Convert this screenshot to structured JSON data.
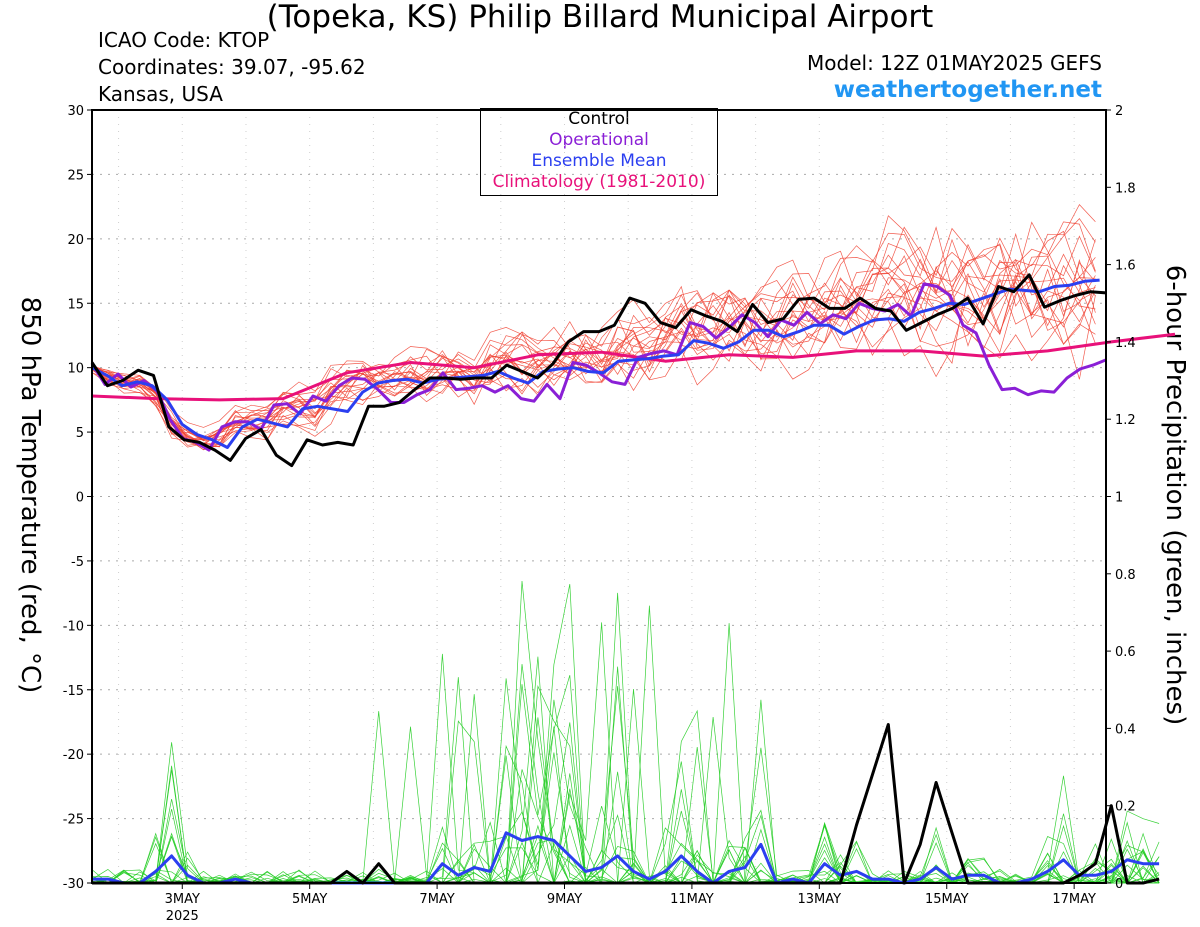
{
  "header": {
    "title": "(Topeka, KS) Philip Billard Municipal Airport",
    "icao": "ICAO Code: KTOP",
    "coords": "Coordinates: 39.07, -95.62",
    "region": "Kansas, USA",
    "model": "Model: 12Z 01MAY2025 GEFS",
    "site": "weathertogether.net",
    "site_color": "#2196f3"
  },
  "legend": {
    "control": "Control",
    "operational": "Operational",
    "mean": "Ensemble Mean",
    "climo": "Climatology (1981-2010)"
  },
  "colors": {
    "control": "#000000",
    "operational": "#8a1fd6",
    "mean": "#2b3ff0",
    "climo": "#e8117a",
    "temp_members": "#f04030",
    "precip_members": "#22cc22"
  },
  "chart_data": {
    "type": "line",
    "xlabel": "",
    "ylabel": "850 hPa Temperature (red, °C)",
    "y2label": "6-hour Precipitation (green, inches)",
    "xlim_days": [
      1.583,
      17.5
    ],
    "ylim": [
      -30,
      30
    ],
    "y2lim": [
      0,
      2
    ],
    "grid": true,
    "x_ticks": [
      {
        "day": 3,
        "label": "3MAY"
      },
      {
        "day": 5,
        "label": "5MAY"
      },
      {
        "day": 7,
        "label": "7MAY"
      },
      {
        "day": 9,
        "label": "9MAY"
      },
      {
        "day": 11,
        "label": "11MAY"
      },
      {
        "day": 13,
        "label": "13MAY"
      },
      {
        "day": 15,
        "label": "15MAY"
      },
      {
        "day": 17,
        "label": "17MAY"
      }
    ],
    "x_sublabel": "2025",
    "y_ticks": [
      30,
      25,
      20,
      15,
      10,
      5,
      0,
      -5,
      -10,
      -15,
      -20,
      -25,
      -30
    ],
    "y2_ticks": [
      2,
      1.8,
      1.6,
      1.4,
      1.2,
      1,
      0.8,
      0.6,
      0.4,
      0.2,
      0
    ],
    "temperature": {
      "control": [
        10.4,
        8.6,
        9.0,
        9.8,
        9.4,
        5.4,
        4.4,
        4.2,
        3.6,
        2.8,
        4.5,
        5.2,
        3.2,
        2.4,
        4.4,
        4.0,
        4.2,
        4.0,
        7.0,
        7.0,
        7.3,
        8.3,
        9.2,
        9.2,
        9.1,
        9.2,
        9.2,
        10.2,
        9.7,
        9.2,
        10.3,
        12.0,
        12.8,
        12.8,
        13.3,
        15.4,
        15.0,
        13.5,
        13.1,
        14.5,
        14.0,
        13.6,
        12.8,
        14.9,
        13.5,
        13.8,
        15.3,
        15.4,
        14.6,
        14.6,
        15.4,
        14.6,
        14.4,
        12.9,
        13.5,
        14.1,
        14.6,
        15.4,
        13.4,
        16.3,
        15.9,
        17.2,
        14.7,
        15.2,
        15.6,
        15.9,
        15.8
      ],
      "operational": [
        10.3,
        8.7,
        9.5,
        8.5,
        9.0,
        8.2,
        6.0,
        4.5,
        4.2,
        3.6,
        5.4,
        5.8,
        5.8,
        5.2,
        7.1,
        7.2,
        6.4,
        7.8,
        7.4,
        8.6,
        9.2,
        9.1,
        8.3,
        7.3,
        7.3,
        7.9,
        8.3,
        9.6,
        8.3,
        8.4,
        8.6,
        8.1,
        8.6,
        7.6,
        7.4,
        8.7,
        7.6,
        10.4,
        10.2,
        9.6,
        8.9,
        8.7,
        10.8,
        11.1,
        11.3,
        11.0,
        13.5,
        13.2,
        12.3,
        13.1,
        14.1,
        13.5,
        12.4,
        13.7,
        13.3,
        14.3,
        13.4,
        14.1,
        13.8,
        15.0,
        14.6,
        14.4,
        14.9,
        14.0,
        16.5,
        16.3,
        15.6,
        13.3,
        12.7,
        10.2,
        8.3,
        8.4,
        7.9,
        8.2,
        8.1,
        9.2,
        9.9,
        10.2,
        10.6
      ],
      "mean": [
        10.0,
        9.4,
        8.6,
        8.9,
        8.6,
        7.5,
        5.6,
        4.8,
        4.4,
        3.8,
        5.4,
        6.0,
        5.7,
        5.4,
        6.8,
        7.0,
        6.8,
        6.6,
        8.1,
        8.8,
        9.0,
        9.1,
        8.8,
        9.1,
        9.2,
        9.3,
        9.4,
        9.7,
        9.2,
        8.8,
        9.7,
        9.9,
        10.0,
        9.7,
        9.6,
        10.5,
        10.6,
        10.7,
        10.9,
        11.0,
        12.1,
        11.9,
        11.5,
        12.0,
        12.9,
        12.9,
        12.4,
        12.8,
        13.3,
        13.3,
        12.6,
        13.2,
        13.7,
        13.8,
        13.6,
        14.3,
        14.6,
        15.0,
        14.9,
        15.3,
        15.7,
        16.1,
        16.0,
        15.9,
        16.3,
        16.4,
        16.7,
        16.8
      ],
      "climatology": [
        7.8,
        7.6,
        7.5,
        7.6,
        9.6,
        10.4,
        10.0,
        11.0,
        11.2,
        10.5,
        11.0,
        10.8,
        11.3,
        11.3,
        10.9,
        11.3,
        12.0,
        12.6
      ]
    },
    "precipitation": {
      "control": [
        0.0,
        0.0,
        0.0,
        0.0,
        0.0,
        0.0,
        0.0,
        0.0,
        0.0,
        0.0,
        0.0,
        0.0,
        0.0,
        0.0,
        0.0,
        0.0,
        0.03,
        0.0,
        0.05,
        0.0,
        0.0,
        0.0,
        0.0,
        0.0,
        0.0,
        0.0,
        0.0,
        0.0,
        0.0,
        0.0,
        0.0,
        0.0,
        0.0,
        0.0,
        0.0,
        0.0,
        0.0,
        0.0,
        0.0,
        0.0,
        0.0,
        0.0,
        0.0,
        0.0,
        0.0,
        0.0,
        0.0,
        0.0,
        0.15,
        0.28,
        0.41,
        0.0,
        0.1,
        0.26,
        0.13,
        0.0,
        0.0,
        0.0,
        0.0,
        0.0,
        0.0,
        0.0,
        0.02,
        0.05,
        0.2,
        0.0,
        0.0,
        0.01
      ],
      "mean": [
        0.01,
        0.01,
        0.0,
        0.0,
        0.03,
        0.07,
        0.02,
        0.0,
        0.0,
        0.01,
        0.0,
        0.0,
        0.0,
        0.0,
        0.0,
        0.0,
        0.0,
        0.0,
        0.0,
        0.0,
        0.0,
        0.0,
        0.05,
        0.02,
        0.04,
        0.03,
        0.13,
        0.11,
        0.12,
        0.11,
        0.07,
        0.03,
        0.04,
        0.07,
        0.03,
        0.01,
        0.03,
        0.07,
        0.03,
        0.0,
        0.03,
        0.04,
        0.1,
        0.0,
        0.01,
        0.0,
        0.05,
        0.02,
        0.03,
        0.01,
        0.01,
        0.0,
        0.01,
        0.04,
        0.01,
        0.02,
        0.02,
        0.0,
        0.0,
        0.01,
        0.03,
        0.06,
        0.02,
        0.02,
        0.03,
        0.06,
        0.05,
        0.05
      ]
    }
  }
}
